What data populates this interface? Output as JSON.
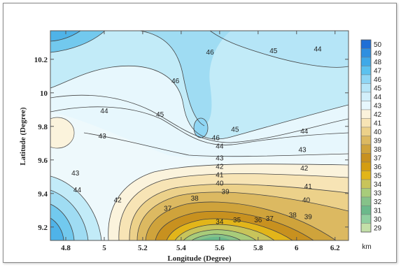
{
  "chart_data": {
    "type": "contour",
    "xlabel": "Longitude (Degree)",
    "ylabel": "Latitude (Degree)",
    "colorbar_unit": "km",
    "xlim": [
      4.72,
      6.27
    ],
    "ylim": [
      9.12,
      10.37
    ],
    "xticks": [
      4.8,
      5,
      5.2,
      5.4,
      5.6,
      5.8,
      6,
      6.2
    ],
    "yticks": [
      9.2,
      9.4,
      9.6,
      9.8,
      10,
      10.2
    ],
    "xtick_labels": [
      "4.8",
      "5",
      "5.2",
      "5.4",
      "5.6",
      "5.8",
      "6",
      "6.2"
    ],
    "ytick_labels": [
      "9.2",
      "9.4",
      "9.6",
      "9.8",
      "10",
      "10.2"
    ],
    "colorbar_levels": [
      50,
      49,
      48,
      47,
      46,
      45,
      44,
      43,
      42,
      41,
      40,
      39,
      38,
      37,
      36,
      35,
      34,
      33,
      32,
      31,
      30,
      29
    ],
    "colorbar_labels": [
      "50",
      "49",
      "48",
      "47",
      "46",
      "45",
      "44",
      "43",
      "42",
      "41",
      "40",
      "39",
      "38",
      "37",
      "36",
      "35",
      "34",
      "33",
      "32",
      "31",
      "30",
      "29"
    ],
    "colorbar_colors": [
      "#1f6fd6",
      "#2e8fe0",
      "#3fa9e8",
      "#5cc2ef",
      "#8fd6f4",
      "#b7e6f8",
      "#d3f0fb",
      "#e7f7fd",
      "#fbf3dc",
      "#f7e4b5",
      "#ecd18a",
      "#dcb961",
      "#cfa33b",
      "#c8911f",
      "#d49d12",
      "#e2b51a",
      "#c8c45a",
      "#a8cc7a",
      "#86c289",
      "#6bb98b",
      "#8fcfa0",
      "#c3dfa8"
    ],
    "contour_labels": [
      {
        "text": "46",
        "lon": 5.37,
        "lat": 10.07
      },
      {
        "text": "46",
        "lon": 5.55,
        "lat": 10.24
      },
      {
        "text": "45",
        "lon": 5.88,
        "lat": 10.25
      },
      {
        "text": "44",
        "lon": 6.11,
        "lat": 10.26
      },
      {
        "text": "45",
        "lon": 5.29,
        "lat": 9.87
      },
      {
        "text": "44",
        "lon": 5.0,
        "lat": 9.89
      },
      {
        "text": "43",
        "lon": 4.99,
        "lat": 9.74
      },
      {
        "text": "46",
        "lon": 5.58,
        "lat": 9.73
      },
      {
        "text": "45",
        "lon": 5.68,
        "lat": 9.78
      },
      {
        "text": "44",
        "lon": 5.6,
        "lat": 9.68
      },
      {
        "text": "44",
        "lon": 6.04,
        "lat": 9.77
      },
      {
        "text": "43",
        "lon": 5.6,
        "lat": 9.61
      },
      {
        "text": "42",
        "lon": 5.6,
        "lat": 9.56
      },
      {
        "text": "41",
        "lon": 5.6,
        "lat": 9.51
      },
      {
        "text": "40",
        "lon": 5.6,
        "lat": 9.46
      },
      {
        "text": "39",
        "lon": 5.63,
        "lat": 9.41
      },
      {
        "text": "43",
        "lon": 6.03,
        "lat": 9.66
      },
      {
        "text": "42",
        "lon": 6.04,
        "lat": 9.55
      },
      {
        "text": "41",
        "lon": 6.06,
        "lat": 9.44
      },
      {
        "text": "40",
        "lon": 6.05,
        "lat": 9.36
      },
      {
        "text": "39",
        "lon": 6.06,
        "lat": 9.26
      },
      {
        "text": "38",
        "lon": 5.47,
        "lat": 9.37
      },
      {
        "text": "37",
        "lon": 5.33,
        "lat": 9.31
      },
      {
        "text": "38",
        "lon": 5.98,
        "lat": 9.27
      },
      {
        "text": "37",
        "lon": 5.86,
        "lat": 9.25
      },
      {
        "text": "36",
        "lon": 5.8,
        "lat": 9.24
      },
      {
        "text": "35",
        "lon": 5.69,
        "lat": 9.24
      },
      {
        "text": "34",
        "lon": 5.6,
        "lat": 9.23
      },
      {
        "text": "43",
        "lon": 4.85,
        "lat": 9.52
      },
      {
        "text": "44",
        "lon": 4.86,
        "lat": 9.42
      },
      {
        "text": "42",
        "lon": 5.07,
        "lat": 9.36
      }
    ]
  }
}
